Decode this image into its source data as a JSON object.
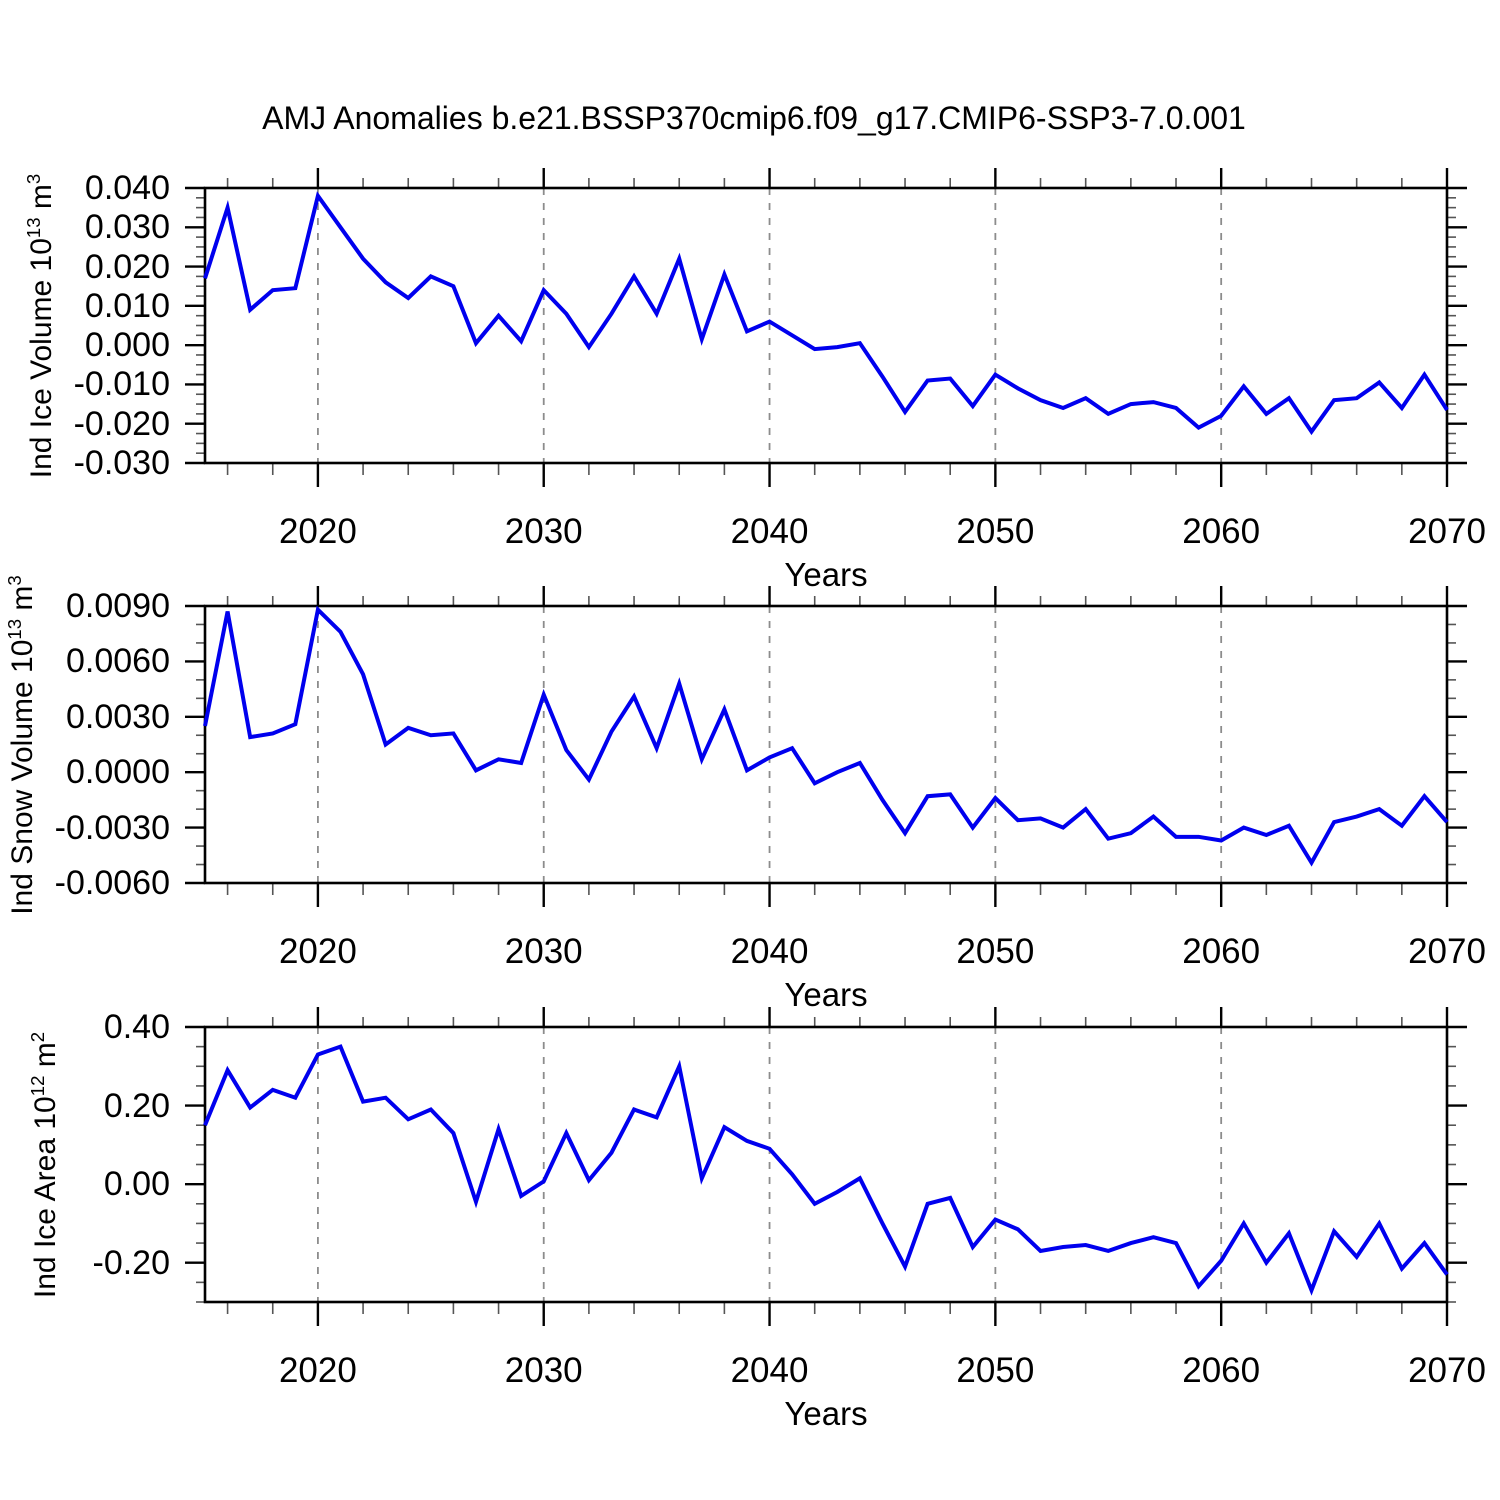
{
  "title": "AMJ Anomalies b.e21.BSSP370cmip6.f09_g17.CMIP6-SSP3-7.0.001",
  "line_color": "#0000ee",
  "grid_color": "#8c8c8c",
  "frame_color": "#000000",
  "minor_tick_color": "#555555",
  "chart_data": [
    {
      "type": "line",
      "series_name": "Ind Ice Volume",
      "ylabel": "Ind Ice Volume 10^13 m^3",
      "ylabel_parts": [
        "Ind Ice Volume 10",
        "13",
        " m",
        "3"
      ],
      "xlabel": "Years",
      "xlim": [
        2015,
        2070
      ],
      "ylim": [
        -0.03,
        0.04
      ],
      "ytick_values": [
        0.04,
        0.03,
        0.02,
        0.01,
        0.0,
        -0.01,
        -0.02,
        -0.03
      ],
      "ytick_labels": [
        "0.040",
        "0.030",
        "0.020",
        "0.010",
        "0.000",
        "-0.010",
        "-0.020",
        "-0.030"
      ],
      "ytick_minor_step": 0.0025,
      "xtick_values": [
        2020,
        2030,
        2040,
        2050,
        2060,
        2070
      ],
      "xtick_labels": [
        "2020",
        "2030",
        "2040",
        "2050",
        "2060",
        "2070"
      ],
      "xtick_minor_step": 2,
      "grid_x": [
        2020,
        2030,
        2040,
        2050,
        2060
      ],
      "x": [
        2015,
        2016,
        2017,
        2018,
        2019,
        2020,
        2021,
        2022,
        2023,
        2024,
        2025,
        2026,
        2027,
        2028,
        2029,
        2030,
        2031,
        2032,
        2033,
        2034,
        2035,
        2036,
        2037,
        2038,
        2039,
        2040,
        2041,
        2042,
        2043,
        2044,
        2045,
        2046,
        2047,
        2048,
        2049,
        2050,
        2051,
        2052,
        2053,
        2054,
        2055,
        2056,
        2057,
        2058,
        2059,
        2060,
        2061,
        2062,
        2063,
        2064,
        2065,
        2066,
        2067,
        2068,
        2069,
        2070
      ],
      "values": [
        0.017,
        0.035,
        0.009,
        0.014,
        0.0145,
        0.038,
        0.03,
        0.022,
        0.016,
        0.012,
        0.0175,
        0.015,
        0.0005,
        0.0075,
        0.001,
        0.014,
        0.008,
        -0.0005,
        0.008,
        0.0175,
        0.008,
        0.022,
        0.0015,
        0.018,
        0.0035,
        0.006,
        0.0025,
        -0.001,
        -0.0005,
        0.0005,
        -0.008,
        -0.017,
        -0.009,
        -0.0085,
        -0.0155,
        -0.0075,
        -0.011,
        -0.014,
        -0.016,
        -0.0135,
        -0.0175,
        -0.015,
        -0.0145,
        -0.016,
        -0.021,
        -0.018,
        -0.0105,
        -0.0175,
        -0.0135,
        -0.022,
        -0.014,
        -0.0135,
        -0.0095,
        -0.016,
        -0.0075,
        -0.0165
      ]
    },
    {
      "type": "line",
      "series_name": "Ind Snow Volume",
      "ylabel": "Ind Snow Volume 10^13 m^3",
      "ylabel_parts": [
        "Ind Snow Volume 10",
        "13",
        " m",
        "3"
      ],
      "xlabel": "Years",
      "xlim": [
        2015,
        2070
      ],
      "ylim": [
        -0.006,
        0.009
      ],
      "ytick_values": [
        0.009,
        0.006,
        0.003,
        0.0,
        -0.003,
        -0.006
      ],
      "ytick_labels": [
        "0.0090",
        "0.0060",
        "0.0030",
        "0.0000",
        "-0.0030",
        "-0.0060"
      ],
      "ytick_minor_step": 0.001,
      "xtick_values": [
        2020,
        2030,
        2040,
        2050,
        2060,
        2070
      ],
      "xtick_labels": [
        "2020",
        "2030",
        "2040",
        "2050",
        "2060",
        "2070"
      ],
      "xtick_minor_step": 2,
      "grid_x": [
        2020,
        2030,
        2040,
        2050,
        2060
      ],
      "x": [
        2015,
        2016,
        2017,
        2018,
        2019,
        2020,
        2021,
        2022,
        2023,
        2024,
        2025,
        2026,
        2027,
        2028,
        2029,
        2030,
        2031,
        2032,
        2033,
        2034,
        2035,
        2036,
        2037,
        2038,
        2039,
        2040,
        2041,
        2042,
        2043,
        2044,
        2045,
        2046,
        2047,
        2048,
        2049,
        2050,
        2051,
        2052,
        2053,
        2054,
        2055,
        2056,
        2057,
        2058,
        2059,
        2060,
        2061,
        2062,
        2063,
        2064,
        2065,
        2066,
        2067,
        2068,
        2069,
        2070
      ],
      "values": [
        0.0025,
        0.0087,
        0.0019,
        0.0021,
        0.0026,
        0.0088,
        0.0076,
        0.0053,
        0.0015,
        0.0024,
        0.002,
        0.0021,
        0.0001,
        0.0007,
        0.0005,
        0.0042,
        0.0012,
        -0.0004,
        0.0022,
        0.0041,
        0.0013,
        0.0048,
        0.0007,
        0.0034,
        0.0001,
        0.0008,
        0.0013,
        -0.0006,
        0.0,
        0.0005,
        -0.0015,
        -0.0033,
        -0.0013,
        -0.0012,
        -0.003,
        -0.0014,
        -0.0026,
        -0.0025,
        -0.003,
        -0.002,
        -0.0036,
        -0.0033,
        -0.0024,
        -0.0035,
        -0.0035,
        -0.0037,
        -0.003,
        -0.0034,
        -0.0029,
        -0.0049,
        -0.0027,
        -0.0024,
        -0.002,
        -0.0029,
        -0.0013,
        -0.0027
      ]
    },
    {
      "type": "line",
      "series_name": "Ind Ice Area",
      "ylabel": "Ind Ice Area 10^12 m^2",
      "ylabel_parts": [
        "Ind Ice Area 10",
        "12",
        " m",
        "2"
      ],
      "xlabel": "Years",
      "xlim": [
        2015,
        2070
      ],
      "ylim": [
        -0.3,
        0.4
      ],
      "ytick_values": [
        0.4,
        0.2,
        0.0,
        -0.2
      ],
      "ytick_labels": [
        "0.40",
        "0.20",
        "0.00",
        "-0.20"
      ],
      "ytick_minor_step": 0.05,
      "xtick_values": [
        2020,
        2030,
        2040,
        2050,
        2060,
        2070
      ],
      "xtick_labels": [
        "2020",
        "2030",
        "2040",
        "2050",
        "2060",
        "2070"
      ],
      "xtick_minor_step": 2,
      "grid_x": [
        2020,
        2030,
        2040,
        2050,
        2060
      ],
      "x": [
        2015,
        2016,
        2017,
        2018,
        2019,
        2020,
        2021,
        2022,
        2023,
        2024,
        2025,
        2026,
        2027,
        2028,
        2029,
        2030,
        2031,
        2032,
        2033,
        2034,
        2035,
        2036,
        2037,
        2038,
        2039,
        2040,
        2041,
        2042,
        2043,
        2044,
        2045,
        2046,
        2047,
        2048,
        2049,
        2050,
        2051,
        2052,
        2053,
        2054,
        2055,
        2056,
        2057,
        2058,
        2059,
        2060,
        2061,
        2062,
        2063,
        2064,
        2065,
        2066,
        2067,
        2068,
        2069,
        2070
      ],
      "values": [
        0.15,
        0.29,
        0.195,
        0.24,
        0.22,
        0.33,
        0.35,
        0.21,
        0.22,
        0.165,
        0.19,
        0.13,
        -0.045,
        0.14,
        -0.03,
        0.007,
        0.13,
        0.01,
        0.08,
        0.19,
        0.17,
        0.3,
        0.015,
        0.145,
        0.11,
        0.09,
        0.025,
        -0.05,
        -0.02,
        0.015,
        -0.1,
        -0.21,
        -0.05,
        -0.035,
        -0.16,
        -0.09,
        -0.115,
        -0.17,
        -0.16,
        -0.155,
        -0.17,
        -0.15,
        -0.135,
        -0.15,
        -0.26,
        -0.195,
        -0.1,
        -0.2,
        -0.125,
        -0.27,
        -0.12,
        -0.185,
        -0.1,
        -0.215,
        -0.15,
        -0.23
      ]
    }
  ]
}
